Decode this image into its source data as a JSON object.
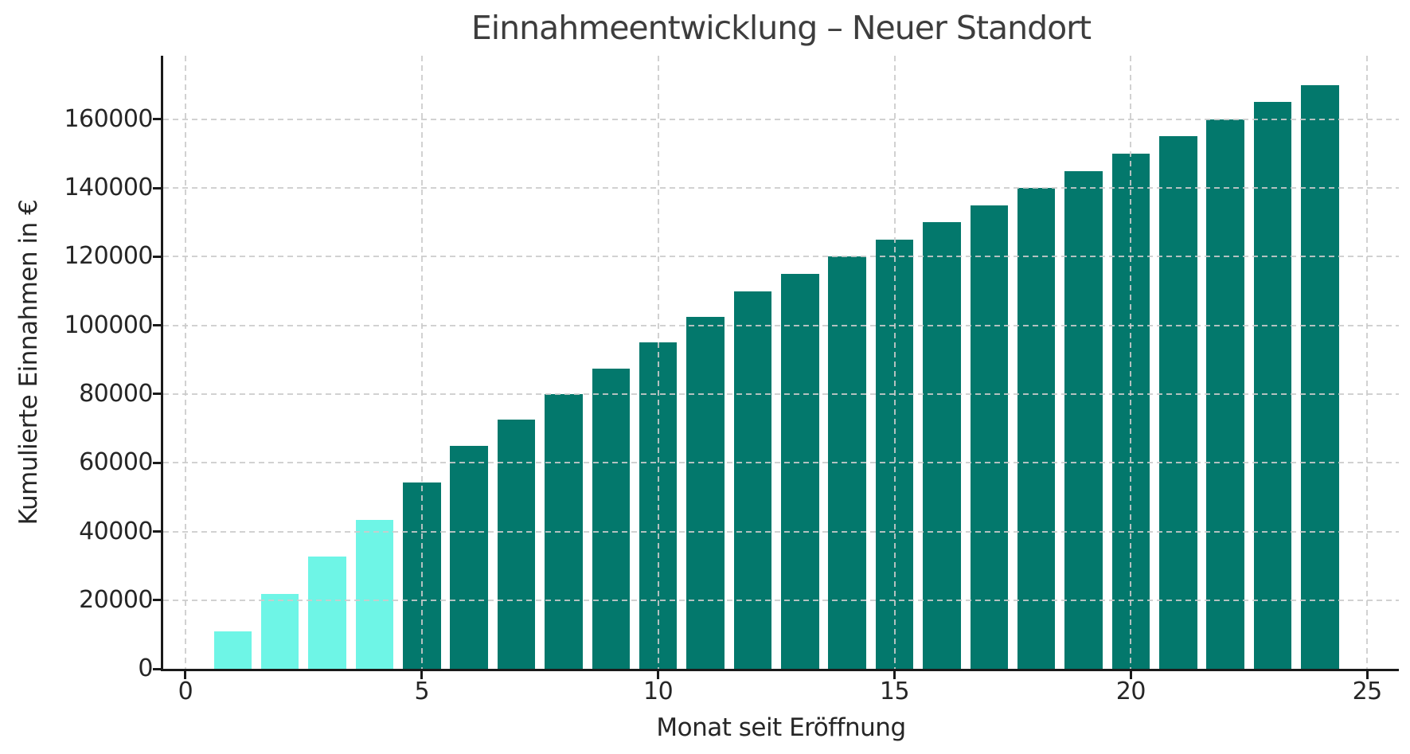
{
  "chart_data": {
    "type": "bar",
    "title": "Einnahmeentwicklung – Neuer Standort",
    "xlabel": "Monat seit Eröffnung",
    "ylabel": "Kumulierte Einnahmen in €",
    "x": [
      1,
      2,
      3,
      4,
      5,
      6,
      7,
      8,
      9,
      10,
      11,
      12,
      13,
      14,
      15,
      16,
      17,
      18,
      19,
      20,
      21,
      22,
      23,
      24
    ],
    "values": [
      11000,
      21800,
      32600,
      43400,
      54200,
      65000,
      72500,
      80000,
      87500,
      95000,
      102500,
      110000,
      115000,
      120000,
      125000,
      130000,
      135000,
      140000,
      145000,
      150000,
      155000,
      160000,
      165000,
      170000
    ],
    "highlight_first_n": 4,
    "colors": {
      "highlight_bar": "#6EF5E6",
      "default_bar": "#03786C"
    },
    "xticks": [
      0,
      5,
      10,
      15,
      20,
      25
    ],
    "yticks": [
      0,
      20000,
      40000,
      60000,
      80000,
      100000,
      120000,
      140000,
      160000
    ],
    "xlim": [
      -0.47,
      25.67
    ],
    "ylim": [
      0,
      178500
    ],
    "bar_width_data_units": 0.8,
    "grid": {
      "show": true,
      "style": "dashed",
      "color": "#cbcbcb",
      "on_top_of_bars": true
    },
    "legend": null,
    "spines": {
      "left": true,
      "bottom": true,
      "top": false,
      "right": false,
      "color": "#1a1a1a"
    }
  }
}
